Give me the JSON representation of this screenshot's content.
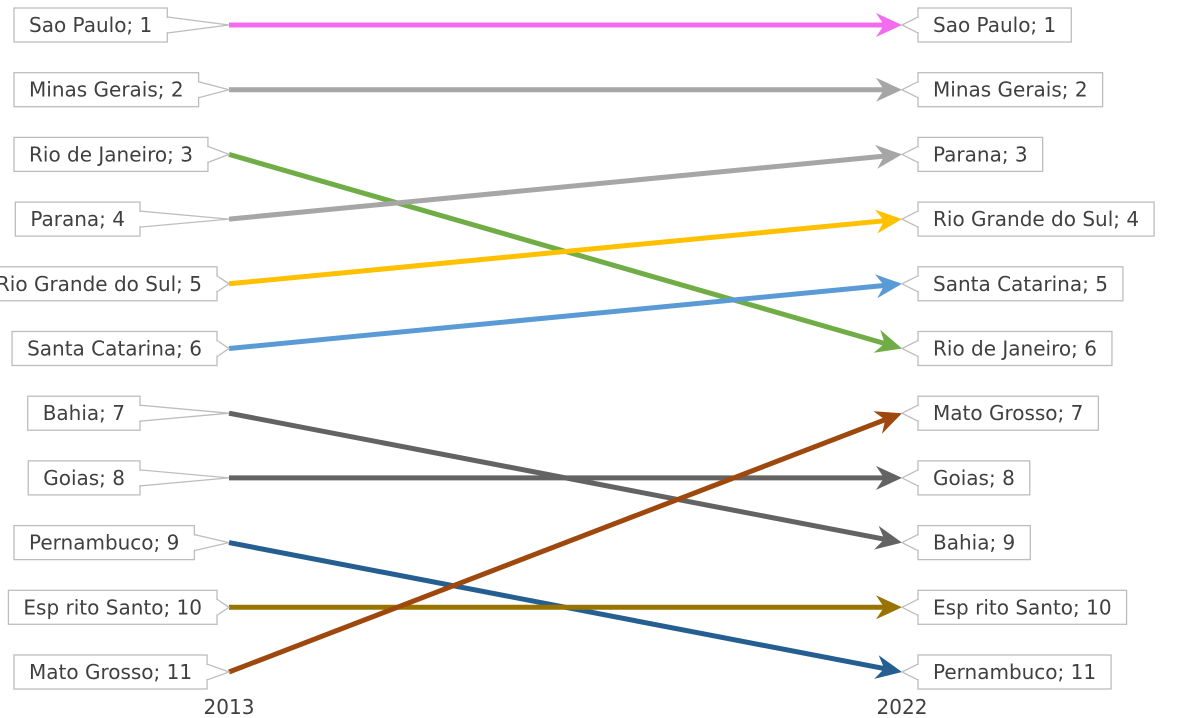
{
  "chart_data": {
    "type": "slope",
    "x_categories": [
      "2013",
      "2022"
    ],
    "ranks": [
      1,
      2,
      3,
      4,
      5,
      6,
      7,
      8,
      9,
      10,
      11
    ],
    "series": [
      {
        "name": "Sao Paulo",
        "rank_2013": 1,
        "rank_2022": 1,
        "color": "#f36cf0"
      },
      {
        "name": "Minas Gerais",
        "rank_2013": 2,
        "rank_2022": 2,
        "color": "#a6a6a6"
      },
      {
        "name": "Rio de Janeiro",
        "rank_2013": 3,
        "rank_2022": 6,
        "color": "#70ad47"
      },
      {
        "name": "Parana",
        "rank_2013": 4,
        "rank_2022": 3,
        "color": "#a6a6a6"
      },
      {
        "name": "Rio Grande do Sul",
        "rank_2013": 5,
        "rank_2022": 4,
        "color": "#ffc000"
      },
      {
        "name": "Santa Catarina",
        "rank_2013": 6,
        "rank_2022": 5,
        "color": "#5b9bd5"
      },
      {
        "name": "Bahia",
        "rank_2013": 7,
        "rank_2022": 9,
        "color": "#636363"
      },
      {
        "name": "Goias",
        "rank_2013": 8,
        "rank_2022": 8,
        "color": "#636363"
      },
      {
        "name": "Pernambuco",
        "rank_2013": 9,
        "rank_2022": 11,
        "color": "#255e91"
      },
      {
        "name": "Esp rito Santo",
        "rank_2013": 10,
        "rank_2022": 10,
        "color": "#997300"
      },
      {
        "name": "Mato Grosso",
        "rank_2013": 11,
        "rank_2022": 7,
        "color": "#9e480e"
      }
    ],
    "labels_2013": [
      "Sao Paulo; 1",
      "Minas Gerais; 2",
      "Rio de Janeiro; 3",
      "Parana; 4",
      "Rio Grande do Sul; 5",
      "Santa Catarina; 6",
      "Bahia; 7",
      "Goias; 8",
      "Pernambuco; 9",
      "Esp rito Santo; 10",
      "Mato Grosso; 11"
    ],
    "labels_2022": [
      "Sao Paulo; 1",
      "Minas Gerais; 2",
      "Parana; 3",
      "Rio Grande do Sul; 4",
      "Santa Catarina; 5",
      "Rio de Janeiro; 6",
      "Mato Grosso; 7",
      "Goias; 8",
      "Bahia; 9",
      "Esp rito Santo; 10",
      "Pernambuco; 11"
    ],
    "grid": false
  }
}
